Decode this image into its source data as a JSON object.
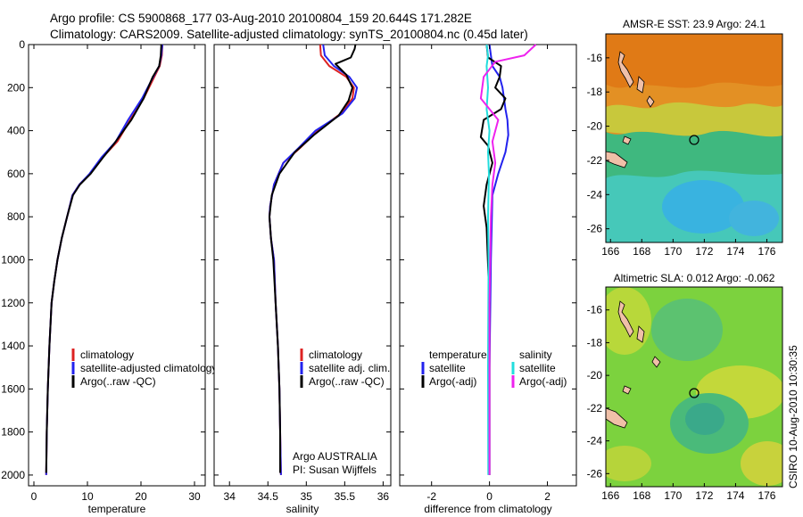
{
  "header": {
    "line1": "Argo profile: CS 5900868_177 03-Aug-2010 20100804_159 20.644S 171.282E",
    "line2": "Climatology: CARS2009. Satellite-adjusted climatology: synTS_20100804.nc (0.45d later)"
  },
  "side_label": "CSIRO 10-Aug-2010 10:30:35",
  "colors": {
    "clim": "#dd2222",
    "sat": "#2222ee",
    "argo": "#000000",
    "cyan": "#22dddd",
    "magenta": "#ee22ee"
  },
  "chart_data": [
    {
      "type": "line",
      "xlabel": "temperature",
      "xlim": [
        -1,
        32
      ],
      "ylim": [
        0,
        2050
      ],
      "y_inverted": true,
      "xticks": [
        0,
        10,
        20,
        30
      ],
      "yticks": [
        0,
        200,
        400,
        600,
        800,
        1000,
        1200,
        1400,
        1600,
        1800,
        2000
      ],
      "legend": [
        "climatology",
        "satellite-adjusted climatology",
        "Argo(..raw -QC)"
      ],
      "legend_placement": "lower-right",
      "series": [
        {
          "name": "climatology",
          "color": "clim",
          "x": [
            24.0,
            23.9,
            23.5,
            22.5,
            20.5,
            18.0,
            15.6,
            12.8,
            10.5,
            8.5,
            7.2,
            6.2,
            5.2,
            4.4,
            3.8,
            3.3,
            2.9,
            2.6,
            2.4,
            2.3
          ],
          "y": [
            0,
            50,
            100,
            150,
            250,
            350,
            450,
            525,
            600,
            650,
            700,
            800,
            900,
            1000,
            1100,
            1200,
            1400,
            1600,
            1800,
            2000
          ]
        },
        {
          "name": "satellite-adjusted climatology",
          "color": "sat",
          "x": [
            24.0,
            23.8,
            23.4,
            22.3,
            20.2,
            17.6,
            15.3,
            12.6,
            10.4,
            8.5,
            7.2,
            6.2,
            5.2,
            4.4,
            3.8,
            3.3,
            2.9,
            2.6,
            2.4,
            2.3
          ],
          "y": [
            0,
            50,
            100,
            150,
            250,
            350,
            450,
            525,
            600,
            650,
            700,
            800,
            900,
            1000,
            1100,
            1200,
            1400,
            1600,
            1800,
            2000
          ]
        },
        {
          "name": "Argo(..raw -QC)",
          "color": "argo",
          "x": [
            23.8,
            23.7,
            23.4,
            22.2,
            20.5,
            18.2,
            15.0,
            12.9,
            10.6,
            8.6,
            7.3,
            6.2,
            5.2,
            4.4,
            3.8,
            3.3,
            2.9,
            2.6,
            2.4,
            2.3
          ],
          "y": [
            0,
            50,
            100,
            150,
            250,
            350,
            460,
            525,
            600,
            650,
            700,
            800,
            900,
            1000,
            1100,
            1200,
            1400,
            1600,
            1800,
            1990
          ]
        }
      ]
    },
    {
      "type": "line",
      "xlabel": "salinity",
      "xlim": [
        33.8,
        36.1
      ],
      "ylim": [
        0,
        2050
      ],
      "y_inverted": true,
      "xticks": [
        34,
        34.5,
        35,
        35.5,
        36
      ],
      "legend": [
        "climatology",
        "satellite adj. clim.",
        "Argo(..raw -QC)"
      ],
      "legend_placement": "lower-right",
      "annotation": [
        "Argo AUSTRALIA",
        "PI: Susan Wijffels"
      ],
      "series": [
        {
          "name": "climatology",
          "color": "clim",
          "x": [
            35.18,
            35.19,
            35.3,
            35.52,
            35.62,
            35.6,
            35.45,
            35.15,
            34.92,
            34.7,
            34.58,
            34.53,
            34.52,
            34.54,
            34.58,
            34.6,
            34.63,
            34.65,
            34.66,
            34.67
          ],
          "y": [
            0,
            50,
            100,
            150,
            200,
            250,
            320,
            400,
            480,
            550,
            650,
            750,
            800,
            900,
            1000,
            1200,
            1400,
            1600,
            1800,
            2000
          ]
        },
        {
          "name": "satellite adj. clim.",
          "color": "sat",
          "x": [
            35.22,
            35.24,
            35.36,
            35.56,
            35.66,
            35.63,
            35.47,
            35.12,
            34.9,
            34.7,
            34.58,
            34.53,
            34.52,
            34.54,
            34.58,
            34.6,
            34.63,
            34.65,
            34.66,
            34.67
          ],
          "y": [
            0,
            50,
            100,
            150,
            200,
            250,
            320,
            400,
            480,
            550,
            650,
            750,
            800,
            900,
            1000,
            1200,
            1400,
            1600,
            1800,
            2000
          ]
        },
        {
          "name": "Argo(..raw -QC)",
          "color": "argo",
          "x": [
            35.64,
            35.63,
            35.58,
            35.38,
            35.52,
            35.6,
            35.55,
            35.42,
            35.1,
            34.85,
            34.65,
            34.55,
            34.52,
            34.54,
            34.57,
            34.6,
            34.63,
            34.65,
            34.66,
            34.66
          ],
          "y": [
            0,
            20,
            60,
            90,
            140,
            200,
            260,
            330,
            420,
            500,
            600,
            700,
            800,
            900,
            1000,
            1200,
            1400,
            1600,
            1800,
            1990
          ]
        }
      ]
    },
    {
      "type": "line",
      "xlabel": "difference from climatology",
      "xlim": [
        -3.1,
        3.0
      ],
      "ylim": [
        0,
        2050
      ],
      "y_inverted": true,
      "xticks": [
        -2,
        0,
        2
      ],
      "legend": [
        "temperature",
        "satellite",
        "Argo(-adj)",
        "salinity",
        "satellite",
        "Argo(-adj)"
      ],
      "legend_placement": "lower-center",
      "series": [
        {
          "name": "satellite",
          "group": "temperature",
          "color": "sat",
          "x": [
            0.0,
            0.05,
            0.1,
            0.35,
            0.45,
            0.5,
            0.55,
            0.62,
            0.65,
            0.55,
            0.3,
            0.1,
            0.05,
            0.0,
            0.0
          ],
          "y": [
            0,
            50,
            100,
            150,
            200,
            250,
            300,
            350,
            420,
            500,
            600,
            700,
            1000,
            1500,
            2000
          ]
        },
        {
          "name": "Argo(-adj)",
          "group": "temperature",
          "color": "argo",
          "x": [
            -0.1,
            -0.05,
            0.4,
            0.35,
            0.2,
            0.55,
            0.4,
            -0.2,
            -0.3,
            -0.05,
            0.1,
            -0.1,
            -0.2,
            -0.1,
            0.0,
            0.0
          ],
          "y": [
            0,
            60,
            100,
            150,
            200,
            250,
            300,
            350,
            430,
            470,
            550,
            650,
            750,
            850,
            1200,
            2000
          ]
        },
        {
          "name": "satellite",
          "group": "salinity",
          "color": "cyan",
          "x": [
            -0.1,
            -0.05,
            -0.1,
            -0.05,
            -0.1,
            0.0,
            -0.05,
            -0.02,
            -0.05,
            -0.03,
            -0.05,
            -0.04
          ],
          "y": [
            0,
            50,
            100,
            200,
            300,
            400,
            500,
            600,
            800,
            1000,
            1500,
            2000
          ]
        },
        {
          "name": "Argo(-adj)",
          "group": "salinity",
          "color": "magenta",
          "x": [
            1.6,
            1.2,
            0.2,
            -0.2,
            -0.3,
            0.3,
            0.1,
            0.2,
            0.1,
            0.05,
            0.0,
            0.0
          ],
          "y": [
            0,
            50,
            80,
            150,
            250,
            350,
            450,
            550,
            650,
            800,
            1200,
            2000
          ]
        }
      ]
    },
    {
      "type": "heatmap",
      "title": "AMSR-E SST: 23.9 Argo: 24.1",
      "xticks": [
        166,
        168,
        170,
        172,
        174,
        176
      ],
      "yticks": [
        -16,
        -18,
        -20,
        -22,
        -24,
        -26
      ],
      "xlim": [
        165.7,
        177.0
      ],
      "ylim": [
        -26.8,
        -14.6
      ],
      "marker": {
        "lon": 171.282,
        "lat": -20.644
      }
    },
    {
      "type": "heatmap",
      "title": "Altimetric SLA: 0.012 Argo: -0.062",
      "xticks": [
        166,
        168,
        170,
        172,
        174,
        176
      ],
      "yticks": [
        -16,
        -18,
        -20,
        -22,
        -24,
        -26
      ],
      "xlim": [
        165.7,
        177.0
      ],
      "ylim": [
        -26.8,
        -14.6
      ],
      "marker": {
        "lon": 171.282,
        "lat": -20.644
      }
    }
  ]
}
